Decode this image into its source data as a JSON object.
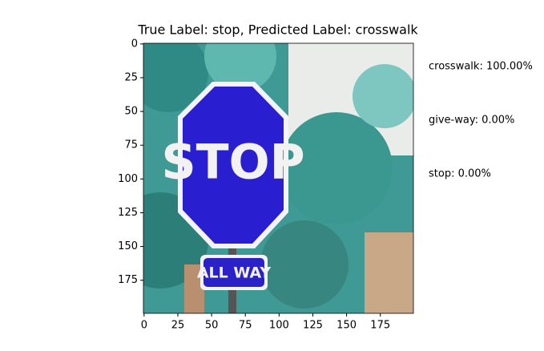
{
  "chart_data": {
    "type": "image",
    "title": "True Label: stop, Predicted Label: crosswalk",
    "xlim": [
      -0.5,
      199.5
    ],
    "ylim": [
      199.5,
      -0.5
    ],
    "xticks": [
      0,
      25,
      50,
      75,
      100,
      125,
      150,
      175
    ],
    "yticks": [
      0,
      25,
      50,
      75,
      100,
      125,
      150,
      175
    ],
    "image_texts": [
      "STOP",
      "ALL WAY"
    ],
    "annotations": [
      "crosswalk: 100.00%",
      "give-way: 0.00%",
      "stop: 0.00%"
    ],
    "annotation_color": "red"
  }
}
